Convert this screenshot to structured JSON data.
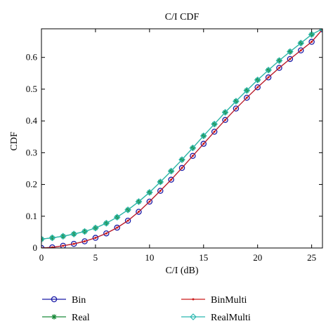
{
  "chart_data": {
    "type": "line",
    "title": "C/I CDF",
    "xlabel": "C/I (dB)",
    "ylabel": "CDF",
    "xlim": [
      0,
      26
    ],
    "ylim": [
      0,
      0.69
    ],
    "xticks": [
      0,
      5,
      10,
      15,
      20,
      25
    ],
    "yticks": [
      0,
      0.1,
      0.2,
      0.3,
      0.4,
      0.5,
      0.6
    ],
    "ytick_labels": [
      "0",
      "0.1",
      "0.2",
      "0.3",
      "0.4",
      "0.5",
      "0.6"
    ],
    "grid": false,
    "legend_position": "bottom",
    "series": [
      {
        "name": "Bin",
        "color": "#1a1aa6",
        "marker": "circle",
        "x": [
          0,
          1,
          2,
          3,
          4,
          5,
          6,
          7,
          8,
          9,
          10,
          11,
          12,
          13,
          14,
          15,
          16,
          17,
          18,
          19,
          20,
          21,
          22,
          23,
          24,
          25,
          26
        ],
        "y": [
          0.0,
          0.002,
          0.007,
          0.013,
          0.021,
          0.032,
          0.046,
          0.064,
          0.086,
          0.114,
          0.146,
          0.18,
          0.215,
          0.252,
          0.29,
          0.328,
          0.366,
          0.403,
          0.439,
          0.473,
          0.506,
          0.537,
          0.567,
          0.595,
          0.622,
          0.649,
          0.688
        ]
      },
      {
        "name": "Real",
        "color": "#1a8a3a",
        "marker": "star",
        "x": [
          0,
          1,
          2,
          3,
          4,
          5,
          6,
          7,
          8,
          9,
          10,
          11,
          12,
          13,
          14,
          15,
          16,
          17,
          18,
          19,
          20,
          21,
          22,
          23,
          24,
          25,
          26
        ],
        "y": [
          0.028,
          0.032,
          0.037,
          0.044,
          0.052,
          0.063,
          0.078,
          0.097,
          0.12,
          0.146,
          0.175,
          0.208,
          0.242,
          0.278,
          0.315,
          0.353,
          0.39,
          0.427,
          0.462,
          0.496,
          0.529,
          0.56,
          0.59,
          0.618,
          0.645,
          0.672,
          0.69
        ]
      },
      {
        "name": "BinMulti",
        "color": "#cc1a1a",
        "marker": "dot",
        "x": [
          0,
          1,
          2,
          3,
          4,
          5,
          6,
          7,
          8,
          9,
          10,
          11,
          12,
          13,
          14,
          15,
          16,
          17,
          18,
          19,
          20,
          21,
          22,
          23,
          24,
          25,
          26
        ],
        "y": [
          0.0,
          0.002,
          0.007,
          0.013,
          0.021,
          0.032,
          0.046,
          0.064,
          0.086,
          0.114,
          0.146,
          0.18,
          0.215,
          0.252,
          0.29,
          0.328,
          0.366,
          0.403,
          0.439,
          0.473,
          0.506,
          0.537,
          0.567,
          0.595,
          0.622,
          0.649,
          0.688
        ]
      },
      {
        "name": "RealMulti",
        "color": "#2ab8b0",
        "marker": "diamond",
        "x": [
          0,
          1,
          2,
          3,
          4,
          5,
          6,
          7,
          8,
          9,
          10,
          11,
          12,
          13,
          14,
          15,
          16,
          17,
          18,
          19,
          20,
          21,
          22,
          23,
          24,
          25,
          26
        ],
        "y": [
          0.028,
          0.032,
          0.037,
          0.044,
          0.052,
          0.063,
          0.078,
          0.097,
          0.12,
          0.146,
          0.175,
          0.208,
          0.242,
          0.278,
          0.315,
          0.353,
          0.39,
          0.427,
          0.462,
          0.496,
          0.529,
          0.56,
          0.59,
          0.618,
          0.645,
          0.672,
          0.69
        ]
      }
    ]
  }
}
